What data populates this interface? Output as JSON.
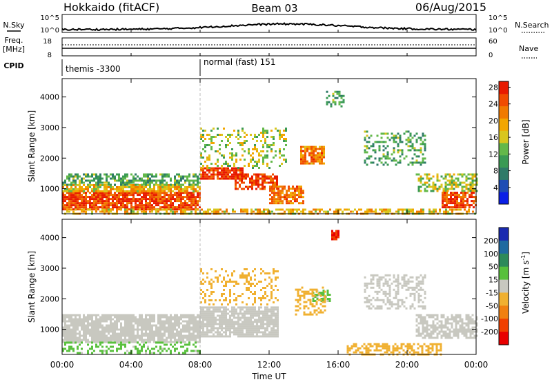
{
  "header": {
    "site": "Hokkaido (fitACF)",
    "beam": "Beam 03",
    "date": "06/Aug/2015"
  },
  "strip_labels": {
    "nsky": "N.Sky",
    "nsky_ticks": [
      "10^5",
      "10^0"
    ],
    "nsearch": "N.Search",
    "nsearch_ticks": [
      "10^5",
      "10^0"
    ],
    "freq": "Freq.",
    "freq_unit": "[MHz]",
    "freq_ticks": [
      "18",
      "8"
    ],
    "nave": "Nave",
    "nave_ticks": [
      "60",
      "0"
    ],
    "cpid": "CPID"
  },
  "cpid_segments": [
    {
      "start_hour": 0,
      "label": "themis -3300"
    },
    {
      "start_hour": 8,
      "label": "normal (fast) 151"
    }
  ],
  "axes": {
    "x_label": "Time UT",
    "x_ticks": [
      "00:00",
      "04:00",
      "08:00",
      "12:00",
      "16:00",
      "20:00",
      "00:00"
    ],
    "x_range_hours": [
      0,
      24
    ],
    "y_label": "Slant Range [km]",
    "y_ticks": [
      1000,
      2000,
      3000,
      4000
    ],
    "y_range_km": [
      180,
      4600
    ]
  },
  "colorbars": {
    "power": {
      "label": "Power [dB]",
      "ticks": [
        "4",
        "8",
        "12",
        "16",
        "20",
        "24",
        "28"
      ],
      "colors": [
        "#0a1fe6",
        "#1e4cb4",
        "#2f7a68",
        "#3a9a54",
        "#63b84a",
        "#d8c61e",
        "#f2a600",
        "#f07a00",
        "#f04c00",
        "#e81a00"
      ]
    },
    "velocity": {
      "label": "Velocity [m s",
      "label_sup": "-1",
      "label_end": "]",
      "ticks": [
        "200",
        "100",
        "50",
        "15",
        "-15",
        "-50",
        "-100",
        "-200"
      ],
      "colors": [
        "#1a2ab0",
        "#1f6aa0",
        "#2d8a5a",
        "#58c03c",
        "#c8c8c0",
        "#f0b030",
        "#f08010",
        "#f04000",
        "#e80000"
      ]
    }
  },
  "chart_data": [
    {
      "type": "heatmap",
      "title": "Power",
      "x_units": "hours UT",
      "y_units": "km",
      "xlim": [
        0,
        24
      ],
      "ylim": [
        180,
        4600
      ],
      "regions": [
        {
          "x": [
            0.0,
            8.0
          ],
          "y": [
            300,
            900
          ],
          "level": 28,
          "density": 0.85
        },
        {
          "x": [
            0.0,
            8.0
          ],
          "y": [
            900,
            1150
          ],
          "level": 20,
          "density": 0.8
        },
        {
          "x": [
            0.0,
            8.0
          ],
          "y": [
            1150,
            1500
          ],
          "level": 12,
          "density": 0.6
        },
        {
          "x": [
            8.0,
            10.5
          ],
          "y": [
            1300,
            1700
          ],
          "level": 28,
          "density": 0.85
        },
        {
          "x": [
            10.0,
            12.5
          ],
          "y": [
            1000,
            1500
          ],
          "level": 28,
          "density": 0.75
        },
        {
          "x": [
            12.0,
            14.0
          ],
          "y": [
            500,
            1100
          ],
          "level": 24,
          "density": 0.7
        },
        {
          "x": [
            8.0,
            13.0
          ],
          "y": [
            1700,
            3000
          ],
          "level": 16,
          "density": 0.25
        },
        {
          "x": [
            13.8,
            15.2
          ],
          "y": [
            1800,
            2400
          ],
          "level": 24,
          "density": 0.75
        },
        {
          "x": [
            15.3,
            16.3
          ],
          "y": [
            3700,
            4200
          ],
          "level": 12,
          "density": 0.4
        },
        {
          "x": [
            17.5,
            21.0
          ],
          "y": [
            1800,
            2900
          ],
          "level": 12,
          "density": 0.35
        },
        {
          "x": [
            20.5,
            24.0
          ],
          "y": [
            900,
            1500
          ],
          "level": 16,
          "density": 0.55
        },
        {
          "x": [
            22.0,
            24.0
          ],
          "y": [
            400,
            900
          ],
          "level": 28,
          "density": 0.8
        },
        {
          "x": [
            0.0,
            24.0
          ],
          "y": [
            180,
            350
          ],
          "level": 20,
          "density": 0.6
        }
      ]
    },
    {
      "type": "heatmap",
      "title": "Velocity",
      "x_units": "hours UT",
      "y_units": "km",
      "xlim": [
        0,
        24
      ],
      "ylim": [
        180,
        4600
      ],
      "regions": [
        {
          "x": [
            0.0,
            8.0
          ],
          "y": [
            600,
            1500
          ],
          "level": 0,
          "density": 0.85
        },
        {
          "x": [
            0.0,
            8.0
          ],
          "y": [
            250,
            600
          ],
          "level": 20,
          "density": 0.35
        },
        {
          "x": [
            8.0,
            12.5
          ],
          "y": [
            800,
            1750
          ],
          "level": 0,
          "density": 0.85
        },
        {
          "x": [
            8.0,
            12.5
          ],
          "y": [
            1800,
            3000
          ],
          "level": -40,
          "density": 0.25
        },
        {
          "x": [
            14.5,
            15.5
          ],
          "y": [
            1900,
            2300
          ],
          "level": 20,
          "density": 0.6
        },
        {
          "x": [
            13.5,
            15.2
          ],
          "y": [
            1500,
            2400
          ],
          "level": -40,
          "density": 0.4
        },
        {
          "x": [
            15.6,
            16.0
          ],
          "y": [
            3950,
            4250
          ],
          "level": -200,
          "density": 0.8
        },
        {
          "x": [
            16.5,
            22.0
          ],
          "y": [
            200,
            550
          ],
          "level": -40,
          "density": 0.6
        },
        {
          "x": [
            17.5,
            21.0
          ],
          "y": [
            1700,
            2800
          ],
          "level": 0,
          "density": 0.45
        },
        {
          "x": [
            20.5,
            24.0
          ],
          "y": [
            700,
            1500
          ],
          "level": 0,
          "density": 0.7
        }
      ]
    }
  ]
}
